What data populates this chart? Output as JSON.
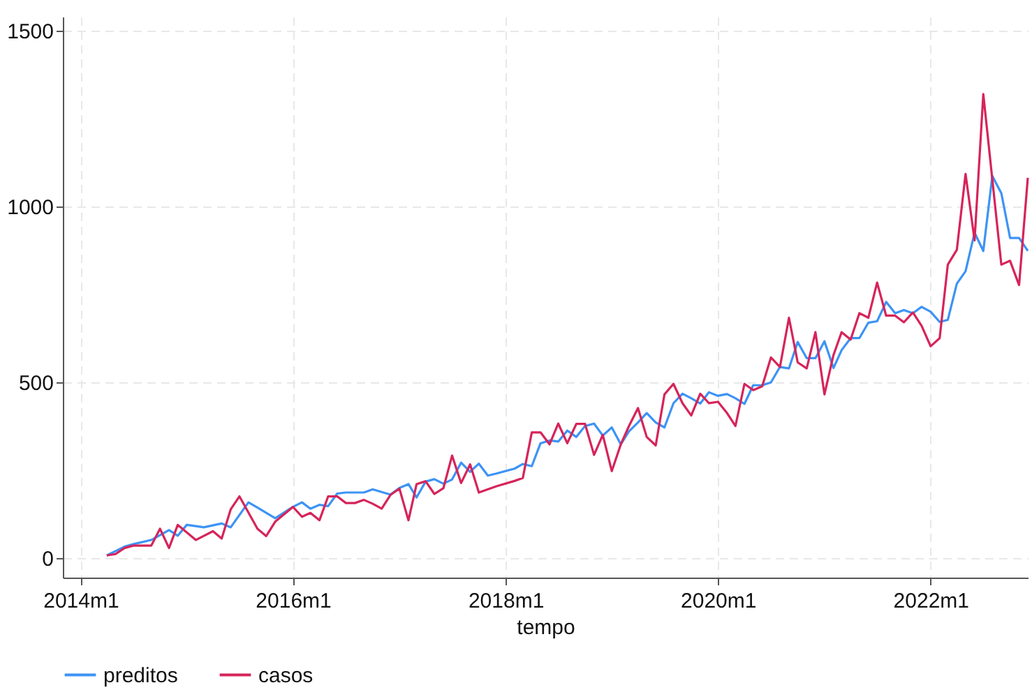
{
  "chart_data": {
    "type": "line",
    "xlabel": "tempo",
    "xlim": [
      "2013-11",
      "2022-12"
    ],
    "ylim": [
      -55,
      1540
    ],
    "xticks": [
      {
        "value": "2014-01",
        "label": "2014m1"
      },
      {
        "value": "2016-01",
        "label": "2016m1"
      },
      {
        "value": "2018-01",
        "label": "2018m1"
      },
      {
        "value": "2020-01",
        "label": "2020m1"
      },
      {
        "value": "2022-01",
        "label": "2022m1"
      }
    ],
    "yticks": [
      0,
      500,
      1000,
      1500
    ],
    "grid": true,
    "legend": "bottom",
    "series": [
      {
        "name": "preditos",
        "color": "#3d93f5",
        "x": [
          "2014-04",
          "2014-06",
          "2014-07",
          "2014-09",
          "2014-11",
          "2014-12",
          "2015-01",
          "2015-03",
          "2015-05",
          "2015-06",
          "2015-08",
          "2015-09",
          "2015-11",
          "2016-01",
          "2016-02",
          "2016-03",
          "2016-04",
          "2016-05",
          "2016-06",
          "2016-07",
          "2016-09",
          "2016-10",
          "2016-12",
          "2017-01",
          "2017-02",
          "2017-03",
          "2017-04",
          "2017-05",
          "2017-06",
          "2017-07",
          "2017-08",
          "2017-09",
          "2017-10",
          "2017-11",
          "2017-12",
          "2018-02",
          "2018-03",
          "2018-04",
          "2018-05",
          "2018-06",
          "2018-07",
          "2018-08",
          "2018-09",
          "2018-10",
          "2018-11",
          "2018-12",
          "2019-01",
          "2019-02",
          "2019-03",
          "2019-04",
          "2019-05",
          "2019-06",
          "2019-07",
          "2019-08",
          "2019-09",
          "2019-10",
          "2019-11",
          "2019-12",
          "2020-01",
          "2020-02",
          "2020-03",
          "2020-04",
          "2020-05",
          "2020-06",
          "2020-07",
          "2020-08",
          "2020-09",
          "2020-10",
          "2020-11",
          "2020-12",
          "2021-01",
          "2021-02",
          "2021-03",
          "2021-04",
          "2021-05",
          "2021-06",
          "2021-07",
          "2021-08",
          "2021-09",
          "2021-10",
          "2021-11",
          "2021-12",
          "2022-01",
          "2022-02",
          "2022-03",
          "2022-04",
          "2022-05",
          "2022-06",
          "2022-07",
          "2022-08",
          "2022-09",
          "2022-10",
          "2022-11",
          "2022-12"
        ],
        "values": [
          8,
          33,
          40,
          52,
          80,
          64,
          95,
          88,
          99,
          88,
          159,
          144,
          114,
          146,
          159,
          141,
          152,
          148,
          184,
          187,
          187,
          196,
          181,
          200,
          211,
          173,
          218,
          225,
          212,
          224,
          272,
          246,
          269,
          235,
          241,
          255,
          268,
          262,
          327,
          335,
          332,
          363,
          345,
          376,
          383,
          349,
          372,
          324,
          361,
          386,
          413,
          386,
          372,
          441,
          468,
          455,
          440,
          472,
          462,
          467,
          455,
          439,
          492,
          492,
          500,
          544,
          540,
          615,
          569,
          569,
          617,
          541,
          592,
          626,
          626,
          670,
          674,
          729,
          697,
          706,
          697,
          715,
          701,
          672,
          678,
          781,
          816,
          926,
          874,
          1087,
          1038,
          911,
          911,
          874
        ]
      },
      {
        "name": "casos",
        "color": "#d6245a",
        "x": [
          "2014-04",
          "2014-05",
          "2014-06",
          "2014-07",
          "2014-09",
          "2014-10",
          "2014-11",
          "2014-12",
          "2015-02",
          "2015-04",
          "2015-05",
          "2015-06",
          "2015-07",
          "2015-09",
          "2015-10",
          "2015-11",
          "2016-01",
          "2016-02",
          "2016-03",
          "2016-04",
          "2016-05",
          "2016-06",
          "2016-07",
          "2016-08",
          "2016-09",
          "2016-10",
          "2016-11",
          "2016-12",
          "2017-01",
          "2017-02",
          "2017-03",
          "2017-04",
          "2017-05",
          "2017-06",
          "2017-07",
          "2017-08",
          "2017-09",
          "2017-10",
          "2017-12",
          "2018-02",
          "2018-03",
          "2018-04",
          "2018-05",
          "2018-06",
          "2018-07",
          "2018-08",
          "2018-09",
          "2018-10",
          "2018-11",
          "2018-12",
          "2019-01",
          "2019-02",
          "2019-03",
          "2019-04",
          "2019-05",
          "2019-06",
          "2019-07",
          "2019-08",
          "2019-09",
          "2019-10",
          "2019-11",
          "2019-12",
          "2020-01",
          "2020-02",
          "2020-03",
          "2020-04",
          "2020-05",
          "2020-06",
          "2020-07",
          "2020-08",
          "2020-09",
          "2020-10",
          "2020-11",
          "2020-12",
          "2021-01",
          "2021-02",
          "2021-03",
          "2021-04",
          "2021-05",
          "2021-06",
          "2021-07",
          "2021-08",
          "2021-09",
          "2021-10",
          "2021-11",
          "2021-12",
          "2022-01",
          "2022-02",
          "2022-03",
          "2022-04",
          "2022-05",
          "2022-06",
          "2022-07",
          "2022-09",
          "2022-10",
          "2022-11",
          "2022-12"
        ],
        "values": [
          8,
          12,
          29,
          36,
          36,
          84,
          29,
          95,
          52,
          77,
          56,
          139,
          176,
          84,
          63,
          104,
          146,
          118,
          129,
          108,
          176,
          176,
          157,
          157,
          166,
          155,
          141,
          180,
          198,
          108,
          211,
          219,
          183,
          199,
          292,
          214,
          267,
          187,
          205,
          220,
          228,
          358,
          358,
          324,
          383,
          327,
          382,
          382,
          294,
          351,
          248,
          324,
          376,
          427,
          345,
          321,
          466,
          496,
          441,
          406,
          468,
          441,
          445,
          413,
          376,
          496,
          478,
          489,
          571,
          544,
          684,
          557,
          540,
          643,
          466,
          578,
          643,
          622,
          697,
          684,
          784,
          690,
          690,
          671,
          699,
          661,
          603,
          626,
          835,
          877,
          1093,
          904,
          1320,
          835,
          846,
          777,
          1082
        ]
      }
    ]
  }
}
